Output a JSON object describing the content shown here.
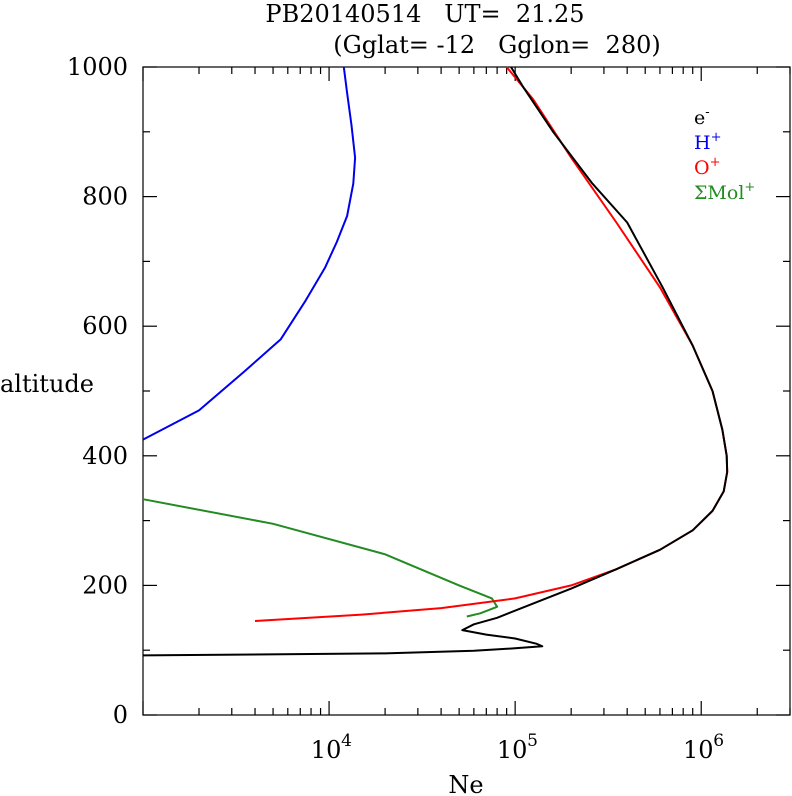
{
  "chart_data": {
    "type": "line",
    "title": "PB20140514   UT=  21.25",
    "subtitle": "(Gglat= -12   Gglon=  280)",
    "xlabel": "Ne",
    "ylabel": "altitude",
    "x_scale": "log",
    "xlim": [
      1000,
      3000000
    ],
    "ylim": [
      0,
      1000
    ],
    "y_ticks": [
      0,
      200,
      400,
      600,
      800,
      1000
    ],
    "x_tick_labels": [
      {
        "value": 10000,
        "base": "10",
        "exp": "4"
      },
      {
        "value": 100000,
        "base": "10",
        "exp": "5"
      },
      {
        "value": 1000000,
        "base": "10",
        "exp": "6"
      }
    ],
    "legend_position": "top-right",
    "grid": false,
    "series": [
      {
        "name": "e",
        "name_sup": "-",
        "color": "#000000",
        "points": [
          [
            1000,
            92
          ],
          [
            20000,
            95
          ],
          [
            60000,
            99
          ],
          [
            100000,
            103
          ],
          [
            140000,
            106
          ],
          [
            130000,
            110
          ],
          [
            100000,
            118
          ],
          [
            70000,
            124
          ],
          [
            52000,
            131
          ],
          [
            60000,
            140
          ],
          [
            80000,
            150
          ],
          [
            120000,
            170
          ],
          [
            200000,
            195
          ],
          [
            350000,
            225
          ],
          [
            600000,
            255
          ],
          [
            900000,
            285
          ],
          [
            1150000,
            315
          ],
          [
            1320000,
            345
          ],
          [
            1380000,
            375
          ],
          [
            1370000,
            400
          ],
          [
            1300000,
            440
          ],
          [
            1150000,
            500
          ],
          [
            900000,
            570
          ],
          [
            620000,
            660
          ],
          [
            400000,
            760
          ],
          [
            260000,
            820
          ],
          [
            160000,
            900
          ],
          [
            110000,
            970
          ],
          [
            95000,
            1000
          ]
        ]
      },
      {
        "name": "H",
        "name_sup": "+",
        "color": "#0000ee",
        "points": [
          [
            1000,
            425
          ],
          [
            2000,
            470
          ],
          [
            3500,
            530
          ],
          [
            5500,
            580
          ],
          [
            7500,
            640
          ],
          [
            9500,
            690
          ],
          [
            11000,
            730
          ],
          [
            12500,
            770
          ],
          [
            13500,
            820
          ],
          [
            13800,
            860
          ],
          [
            13200,
            910
          ],
          [
            12500,
            960
          ],
          [
            12000,
            1000
          ]
        ]
      },
      {
        "name": "O",
        "name_sup": "+",
        "color": "#ff0000",
        "points": [
          [
            4000,
            145
          ],
          [
            15000,
            155
          ],
          [
            40000,
            165
          ],
          [
            100000,
            180
          ],
          [
            200000,
            200
          ],
          [
            350000,
            225
          ],
          [
            600000,
            255
          ],
          [
            900000,
            285
          ],
          [
            1150000,
            315
          ],
          [
            1320000,
            345
          ],
          [
            1380000,
            375
          ],
          [
            1370000,
            400
          ],
          [
            1300000,
            440
          ],
          [
            1150000,
            500
          ],
          [
            900000,
            570
          ],
          [
            600000,
            660
          ],
          [
            350000,
            760
          ],
          [
            200000,
            860
          ],
          [
            125000,
            950
          ],
          [
            90000,
            1000
          ]
        ]
      },
      {
        "name": "ΣMol",
        "name_sup": "+",
        "color": "#228b22",
        "points": [
          [
            1000,
            333
          ],
          [
            5000,
            295
          ],
          [
            20000,
            248
          ],
          [
            50000,
            200
          ],
          [
            75000,
            180
          ],
          [
            80000,
            167
          ],
          [
            65000,
            157
          ],
          [
            55000,
            152
          ]
        ]
      }
    ]
  }
}
